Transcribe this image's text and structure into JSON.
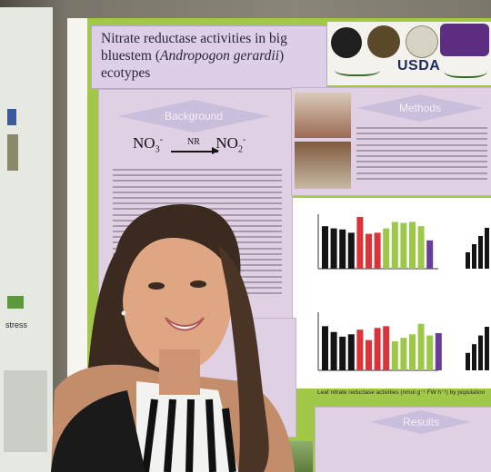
{
  "poster": {
    "title_line1": "Nitrate reductase activities in big",
    "title_line2_pre": "bluestem (",
    "title_line2_italic": "Andropogon gerardii",
    "title_line2_post": ")",
    "title_line3": "ecotypes",
    "usda_label": "USDA",
    "background_heading": "Background",
    "methods_heading": "Methods",
    "results_heading": "Results",
    "reaction": {
      "from": "NO",
      "to": "NO",
      "enzyme": "NR"
    },
    "left_poster_text": "stress",
    "chart_caption": "Leaf nitrate reductase activities (nmol g⁻¹ FW h⁻¹) by population"
  },
  "chart_data": [
    {
      "type": "bar",
      "values": [
        0.78,
        0.74,
        0.72,
        0.66,
        0.95,
        0.64,
        0.66,
        0.74,
        0.86,
        0.84,
        0.86,
        0.78,
        0.52
      ]
    },
    {
      "type": "bar",
      "values": [
        0.76,
        0.66,
        0.58,
        0.62,
        0.7,
        0.52,
        0.73,
        0.76,
        0.5,
        0.56,
        0.62,
        0.8,
        0.6,
        0.64
      ]
    }
  ],
  "colors": {
    "panel_green": "#a2c84a",
    "panel_purple": "#dfd0e4",
    "bar_black": "#141414",
    "bar_red": "#d8343a",
    "bar_green": "#9cc84a",
    "bar_purple": "#6a3c9a"
  }
}
